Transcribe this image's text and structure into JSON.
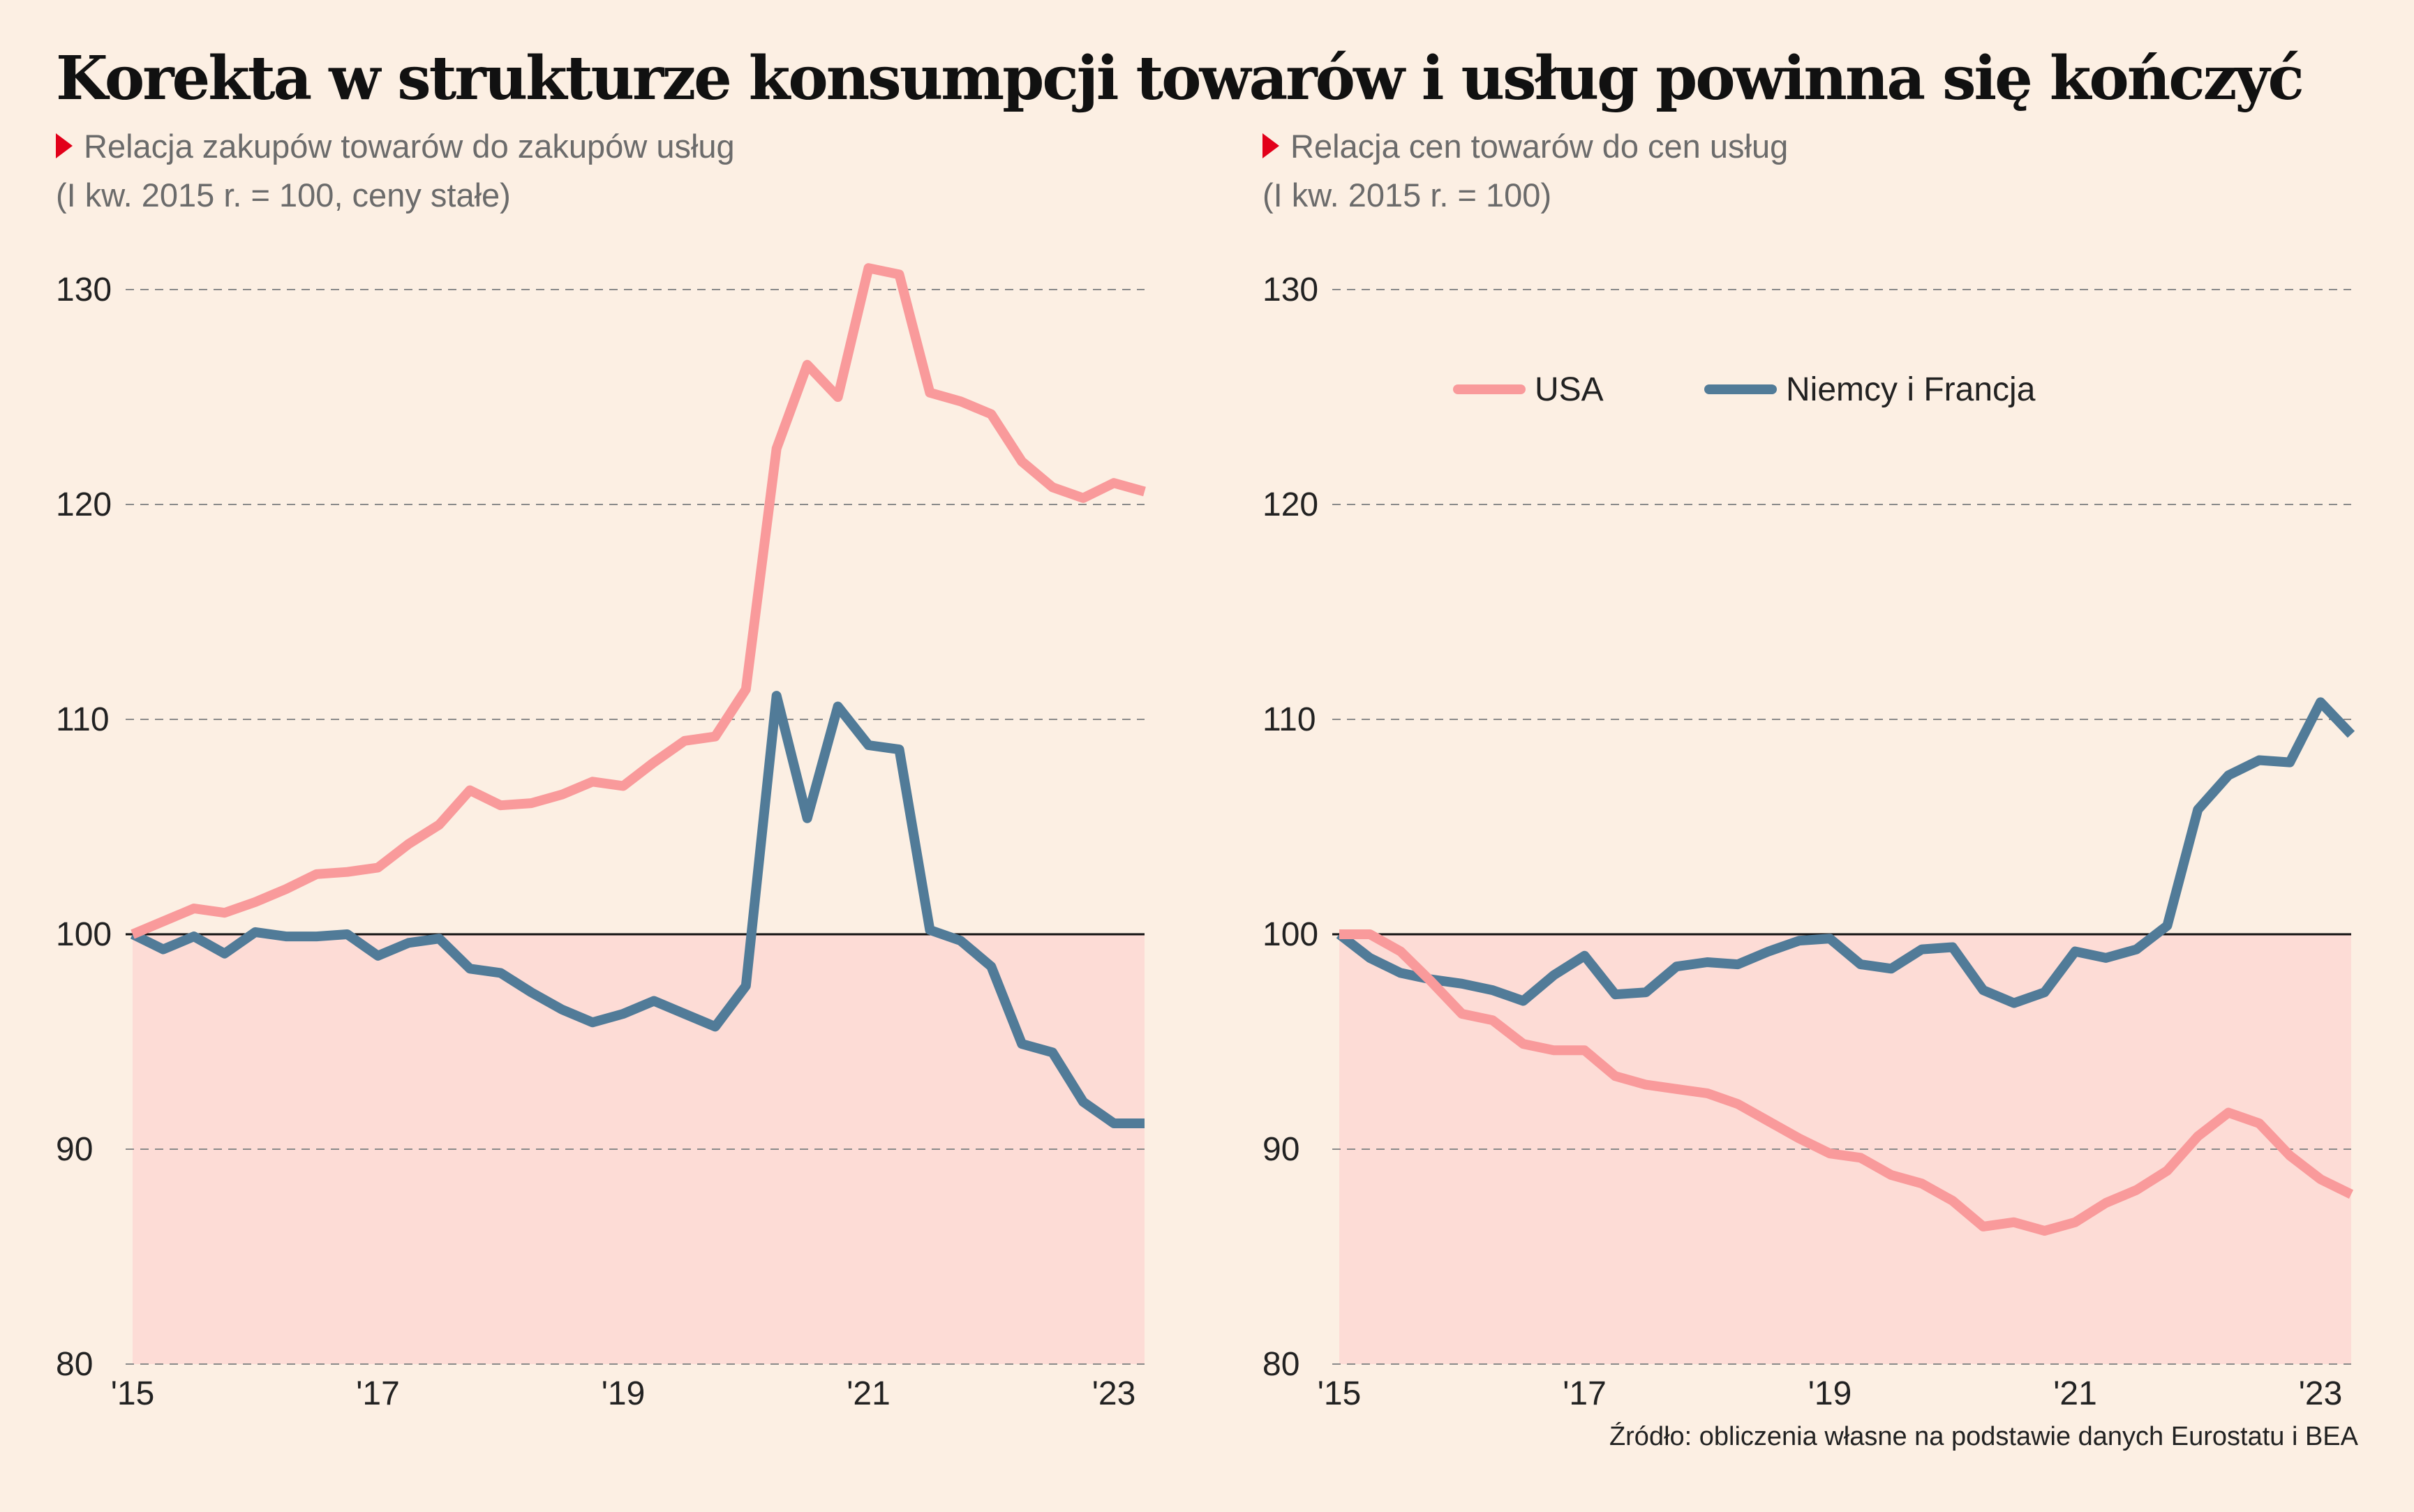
{
  "title": "Korekta w strukturze konsumpcji towarów i usług powinna się kończyć",
  "source": "Źródło: obliczenia własne na podstawie danych Eurostatu i BEA",
  "colors": {
    "background": "#fcefe3",
    "shade": "#fddcd6",
    "usa": "#f99a9b",
    "de_fr": "#517b98",
    "accent": "#e2001a"
  },
  "legend": [
    {
      "label": "USA",
      "color": "#f99a9b"
    },
    {
      "label": "Niemcy i Francja",
      "color": "#517b98"
    }
  ],
  "chart_data": [
    {
      "type": "line",
      "title": "Relacja zakupów towarów do zakupów usług",
      "subtitle": "(I kw. 2015 r. = 100, ceny stałe)",
      "ylim": [
        80,
        130
      ],
      "xlim": [
        2015,
        2023.25
      ],
      "yticks": [
        "80",
        "90",
        "100",
        "110",
        "120",
        "130"
      ],
      "xticks": [
        "'15",
        "'17",
        "'19",
        "'21",
        "'23"
      ],
      "xtick_values": [
        2015,
        2017,
        2019,
        2021,
        2023
      ],
      "grid": true,
      "shaded_below": 100,
      "reference_line": 100,
      "x": [
        2015.0,
        2015.25,
        2015.5,
        2015.75,
        2016.0,
        2016.25,
        2016.5,
        2016.75,
        2017.0,
        2017.25,
        2017.5,
        2017.75,
        2018.0,
        2018.25,
        2018.5,
        2018.75,
        2019.0,
        2019.25,
        2019.5,
        2019.75,
        2020.0,
        2020.25,
        2020.5,
        2020.75,
        2021.0,
        2021.25,
        2021.5,
        2021.75,
        2022.0,
        2022.25,
        2022.5,
        2022.75,
        2023.0,
        2023.25
      ],
      "series": [
        {
          "name": "USA",
          "values": [
            100.0,
            100.6,
            101.2,
            101.0,
            101.5,
            102.1,
            102.8,
            102.9,
            103.1,
            104.2,
            105.1,
            106.7,
            106.0,
            106.1,
            106.5,
            107.1,
            106.9,
            108.0,
            109.0,
            109.2,
            111.4,
            122.6,
            126.5,
            125.0,
            131.0,
            130.7,
            125.2,
            124.8,
            124.2,
            122.0,
            120.8,
            120.3,
            121.0,
            120.6
          ]
        },
        {
          "name": "Niemcy i Francja",
          "values": [
            100.0,
            99.3,
            99.9,
            99.1,
            100.1,
            99.9,
            99.9,
            100.0,
            99.0,
            99.6,
            99.8,
            98.4,
            98.2,
            97.3,
            96.5,
            95.9,
            96.3,
            96.9,
            96.3,
            95.7,
            97.6,
            111.1,
            105.4,
            110.6,
            108.8,
            108.6,
            100.2,
            99.7,
            98.5,
            94.9,
            94.5,
            92.2,
            91.2,
            91.2
          ]
        }
      ]
    },
    {
      "type": "line",
      "title": "Relacja cen towarów do cen usług",
      "subtitle": "(I kw. 2015 r. = 100)",
      "ylim": [
        80,
        130
      ],
      "xlim": [
        2015,
        2023.25
      ],
      "yticks": [
        "80",
        "90",
        "100",
        "110",
        "120",
        "130"
      ],
      "xticks": [
        "'15",
        "'17",
        "'19",
        "'21",
        "'23"
      ],
      "xtick_values": [
        2015,
        2017,
        2019,
        2021,
        2023
      ],
      "grid": true,
      "shaded_below": 100,
      "reference_line": 100,
      "legend_position": "top-center",
      "x": [
        2015.0,
        2015.25,
        2015.5,
        2015.75,
        2016.0,
        2016.25,
        2016.5,
        2016.75,
        2017.0,
        2017.25,
        2017.5,
        2017.75,
        2018.0,
        2018.25,
        2018.5,
        2018.75,
        2019.0,
        2019.25,
        2019.5,
        2019.75,
        2020.0,
        2020.25,
        2020.5,
        2020.75,
        2021.0,
        2021.25,
        2021.5,
        2021.75,
        2022.0,
        2022.25,
        2022.5,
        2022.75,
        2023.0,
        2023.25
      ],
      "series": [
        {
          "name": "USA",
          "values": [
            100.0,
            100.0,
            99.2,
            97.8,
            96.3,
            96.0,
            94.9,
            94.6,
            94.6,
            93.4,
            93.0,
            92.8,
            92.6,
            92.1,
            91.3,
            90.5,
            89.8,
            89.6,
            88.8,
            88.4,
            87.6,
            86.4,
            86.6,
            86.2,
            86.6,
            87.5,
            88.1,
            89.0,
            90.6,
            91.7,
            91.2,
            89.7,
            88.6,
            87.9
          ]
        },
        {
          "name": "Niemcy i Francja",
          "values": [
            100.0,
            98.9,
            98.2,
            97.9,
            97.7,
            97.4,
            96.9,
            98.1,
            99.0,
            97.2,
            97.3,
            98.5,
            98.7,
            98.6,
            99.2,
            99.7,
            99.8,
            98.6,
            98.4,
            99.3,
            99.4,
            97.4,
            96.8,
            97.3,
            99.2,
            98.9,
            99.3,
            100.4,
            105.8,
            107.4,
            108.1,
            108.0,
            110.8,
            109.3
          ]
        }
      ]
    }
  ]
}
